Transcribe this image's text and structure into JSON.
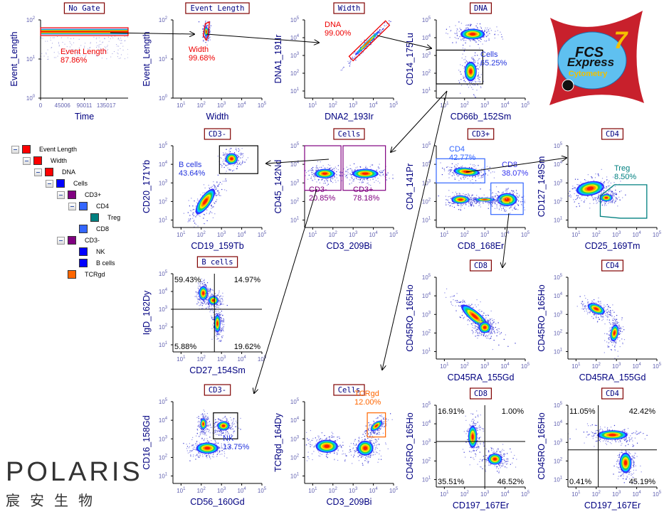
{
  "plots": [
    {
      "id": "p1",
      "title": "No Gate",
      "xlabel": "Time",
      "ylabel": "Event_Length",
      "xscale": "lin",
      "xrange": [
        0,
        180000
      ],
      "xticks": [
        0,
        45006,
        90011,
        135017
      ],
      "yrange": [
        0,
        2
      ],
      "yticks": [
        0,
        1,
        2
      ],
      "pops": [
        {
          "band": true,
          "cy": 1.7,
          "ry": 0.07
        }
      ],
      "gates": [
        {
          "type": "rect",
          "x": [
            0,
            180000
          ],
          "y": [
            1.6,
            1.8
          ],
          "color": "#ee0000",
          "name": "Event Length",
          "pct": "87.86%",
          "tcolor": "#ee0000"
        }
      ]
    },
    {
      "id": "p2",
      "title": "Event Length",
      "xlabel": "Width",
      "ylabel": "Event_Length",
      "xrange": [
        0.6,
        5
      ],
      "xticks": [
        1,
        2,
        3,
        4,
        5
      ],
      "yrange": [
        0,
        2
      ],
      "yticks": [
        0,
        1,
        2
      ],
      "pops": [
        {
          "cx": 2.25,
          "cy": 1.7,
          "rx": 0.1,
          "ry": 0.12,
          "rot": 0
        }
      ],
      "gates": [
        {
          "type": "poly",
          "pts": [
            [
              2.1,
              1.6
            ],
            [
              2.2,
              1.9
            ],
            [
              2.4,
              1.95
            ],
            [
              2.35,
              1.6
            ],
            [
              2.25,
              1.48
            ]
          ],
          "color": "#ee0000",
          "name": "Width",
          "pct": "99.68%",
          "tcolor": "#ee0000"
        }
      ]
    },
    {
      "id": "p3",
      "title": "Width",
      "xlabel": "DNA2_193Ir",
      "ylabel": "DNA1_191Ir",
      "xrange": [
        0.6,
        5
      ],
      "xticks": [
        1,
        2,
        3,
        4,
        5
      ],
      "yrange": [
        0.6,
        5
      ],
      "yticks": [
        1,
        2,
        3,
        4,
        5
      ],
      "pops": [
        {
          "cx": 3.7,
          "cy": 3.7,
          "rx": 0.85,
          "ry": 0.09,
          "rot": 45
        }
      ],
      "gates": [
        {
          "type": "poly",
          "pts": [
            [
              2.8,
              2.95
            ],
            [
              4.6,
              4.95
            ],
            [
              4.8,
              4.7
            ],
            [
              3.0,
              2.7
            ]
          ],
          "color": "#ee0000",
          "name": "DNA",
          "pct": "99.00%",
          "tcolor": "#ee0000"
        }
      ]
    },
    {
      "id": "p4",
      "title": "DNA",
      "xlabel": "CD66b_152Sm",
      "ylabel": "CD14_175Lu",
      "xrange": [
        0.6,
        5
      ],
      "xticks": [
        1,
        2,
        3,
        4,
        5
      ],
      "yrange": [
        0.6,
        5
      ],
      "yticks": [
        1,
        2,
        3,
        4,
        5
      ],
      "pops": [
        {
          "cx": 2.4,
          "cy": 4.2,
          "rx": 0.6,
          "ry": 0.3,
          "rot": 0
        },
        {
          "cx": 2.3,
          "cy": 2.1,
          "rx": 0.3,
          "ry": 0.55,
          "rot": 0
        }
      ],
      "gates": [
        {
          "type": "rect",
          "x": [
            0.6,
            2.9
          ],
          "y": [
            1.4,
            3.3
          ],
          "color": "#000000",
          "name": "Cells",
          "pct": "65.25%",
          "tcolor": "#2233dd"
        }
      ]
    },
    {
      "id": "p5",
      "title": "CD3-",
      "xlabel": "CD19_159Tb",
      "ylabel": "CD20_171Yb",
      "xrange": [
        0.6,
        5
      ],
      "xticks": [
        1,
        2,
        3,
        4,
        5
      ],
      "yrange": [
        0.6,
        5
      ],
      "yticks": [
        1,
        2,
        3,
        4,
        5
      ],
      "pops": [
        {
          "cx": 2.2,
          "cy": 2.0,
          "rx": 0.75,
          "ry": 0.3,
          "rot": 55
        },
        {
          "cx": 3.5,
          "cy": 4.3,
          "rx": 0.3,
          "ry": 0.3,
          "rot": 0
        }
      ],
      "gates": [
        {
          "type": "rect",
          "x": [
            2.9,
            4.8
          ],
          "y": [
            3.5,
            5.0
          ],
          "color": "#000000",
          "name": "B cells",
          "pct": "43.64%",
          "tcolor": "#2233dd"
        }
      ]
    },
    {
      "id": "p6",
      "title": "Cells",
      "xlabel": "CD3_209Bi",
      "ylabel": "CD45_142Nd",
      "xrange": [
        0.6,
        5
      ],
      "xticks": [
        1,
        2,
        3,
        4,
        5
      ],
      "yrange": [
        0.6,
        5
      ],
      "yticks": [
        1,
        2,
        3,
        4,
        5
      ],
      "pops": [
        {
          "cx": 1.6,
          "cy": 3.5,
          "rx": 0.5,
          "ry": 0.25,
          "rot": 0
        },
        {
          "cx": 3.6,
          "cy": 3.5,
          "rx": 0.65,
          "ry": 0.25,
          "rot": 0
        }
      ],
      "gates": [
        {
          "type": "rect",
          "x": [
            0.6,
            2.4
          ],
          "y": [
            2.6,
            5.0
          ],
          "color": "#800080",
          "name": "CD3-",
          "pct": "20.85%",
          "tcolor": "#800080"
        },
        {
          "type": "rect",
          "x": [
            2.5,
            4.6
          ],
          "y": [
            2.6,
            5.0
          ],
          "color": "#800080",
          "name": "CD3+",
          "pct": "78.18%",
          "tcolor": "#800080"
        }
      ]
    },
    {
      "id": "p7",
      "title": "CD3+",
      "xlabel": "CD8_168Er",
      "ylabel": "CD4_141Pr",
      "xrange": [
        0.6,
        5
      ],
      "xticks": [
        1,
        2,
        3,
        4,
        5
      ],
      "yrange": [
        0.6,
        5
      ],
      "yticks": [
        1,
        2,
        3,
        4,
        5
      ],
      "pops": [
        {
          "cx": 2.1,
          "cy": 3.6,
          "rx": 0.65,
          "ry": 0.22,
          "rot": -5
        },
        {
          "cx": 1.8,
          "cy": 2.1,
          "rx": 0.45,
          "ry": 0.22,
          "rot": 0
        },
        {
          "cx": 4.1,
          "cy": 2.1,
          "rx": 0.5,
          "ry": 0.35,
          "rot": 0
        },
        {
          "cx": 3.0,
          "cy": 2.1,
          "rx": 0.5,
          "ry": 0.1,
          "rot": 0
        }
      ],
      "gates": [
        {
          "type": "rect",
          "x": [
            0.6,
            3.0
          ],
          "y": [
            3.0,
            4.3
          ],
          "color": "#3366ff",
          "name": "CD4",
          "pct": "42.77%",
          "tcolor": "#3366ff"
        },
        {
          "type": "rect",
          "x": [
            3.3,
            4.9
          ],
          "y": [
            1.3,
            3.0
          ],
          "color": "#3366ff",
          "name": "CD8",
          "pct": "38.07%",
          "tcolor": "#3333ee"
        }
      ]
    },
    {
      "id": "p8",
      "title": "CD4",
      "xlabel": "CD25_169Tm",
      "ylabel": "CD127_149Sm",
      "xrange": [
        0.6,
        5
      ],
      "xticks": [
        1,
        2,
        3,
        4,
        5
      ],
      "yrange": [
        0.6,
        5
      ],
      "yticks": [
        1,
        2,
        3,
        4,
        5
      ],
      "pops": [
        {
          "cx": 1.7,
          "cy": 2.7,
          "rx": 0.7,
          "ry": 0.38,
          "rot": 10
        },
        {
          "cx": 2.5,
          "cy": 2.2,
          "rx": 0.3,
          "ry": 0.2,
          "rot": 0
        }
      ],
      "gates": [
        {
          "type": "poly",
          "pts": [
            [
              2.2,
              1.2
            ],
            [
              2.2,
              2.3
            ],
            [
              2.9,
              2.9
            ],
            [
              4.5,
              2.9
            ],
            [
              4.5,
              1.1
            ],
            [
              3.2,
              1.1
            ]
          ],
          "color": "#008080",
          "name": "Treg",
          "pct": "8.50%",
          "tcolor": "#008080"
        }
      ]
    },
    {
      "id": "p9",
      "title": "B cells",
      "xlabel": "CD27_154Sm",
      "ylabel": "IgD_162Dy",
      "xrange": [
        0.6,
        5
      ],
      "xticks": [
        1,
        2,
        3,
        4,
        5
      ],
      "yrange": [
        0.6,
        5
      ],
      "yticks": [
        1,
        2,
        3,
        4,
        5
      ],
      "pops": [
        {
          "cx": 2.1,
          "cy": 3.9,
          "rx": 0.22,
          "ry": 0.4,
          "rot": 0
        },
        {
          "cx": 2.8,
          "cy": 2.2,
          "rx": 0.15,
          "ry": 0.5,
          "rot": 0
        },
        {
          "cx": 2.6,
          "cy": 3.5,
          "rx": 0.25,
          "ry": 0.25,
          "rot": 0
        }
      ],
      "gates": [
        {
          "type": "quad",
          "x": 2.65,
          "y": 3.0,
          "color": "#000000",
          "q": [
            "59.43%",
            "14.97%",
            "5.88%",
            "19.62%"
          ]
        }
      ]
    },
    {
      "id": "p10",
      "title": "CD8",
      "xlabel": "CD45RA_155Gd",
      "ylabel": "CD45RO_165Ho",
      "xrange": [
        0.6,
        5
      ],
      "xticks": [
        1,
        2,
        3,
        4,
        5
      ],
      "yrange": [
        0.6,
        5
      ],
      "yticks": [
        1,
        2,
        3,
        4,
        5
      ],
      "pops": [
        {
          "cx": 2.5,
          "cy": 2.9,
          "rx": 0.85,
          "ry": 0.28,
          "rot": -40
        },
        {
          "cx": 3.0,
          "cy": 2.3,
          "rx": 0.3,
          "ry": 0.3,
          "rot": 0
        }
      ],
      "gates": []
    },
    {
      "id": "p11",
      "title": "CD4",
      "xlabel": "CD45RA_155Gd",
      "ylabel": "CD45RO_165Ho",
      "xrange": [
        0.6,
        5
      ],
      "xticks": [
        1,
        2,
        3,
        4,
        5
      ],
      "yrange": [
        0.6,
        5
      ],
      "yticks": [
        1,
        2,
        3,
        4,
        5
      ],
      "pops": [
        {
          "cx": 2.0,
          "cy": 3.3,
          "rx": 0.45,
          "ry": 0.25,
          "rot": -25
        },
        {
          "cx": 2.9,
          "cy": 2.0,
          "rx": 0.2,
          "ry": 0.45,
          "rot": -10
        }
      ],
      "gates": []
    },
    {
      "id": "p12",
      "title": "CD3-",
      "xlabel": "CD56_160Gd",
      "ylabel": "CD16_158Gd",
      "xrange": [
        0.6,
        5
      ],
      "xticks": [
        1,
        2,
        3,
        4,
        5
      ],
      "yrange": [
        0.6,
        5
      ],
      "yticks": [
        1,
        2,
        3,
        4,
        5
      ],
      "pops": [
        {
          "cx": 2.3,
          "cy": 2.5,
          "rx": 0.55,
          "ry": 0.3,
          "rot": 0
        },
        {
          "cx": 3.1,
          "cy": 3.7,
          "rx": 0.3,
          "ry": 0.25,
          "rot": 0
        },
        {
          "cx": 2.1,
          "cy": 3.8,
          "rx": 0.15,
          "ry": 0.3,
          "rot": 0
        }
      ],
      "gates": [
        {
          "type": "rect",
          "x": [
            2.6,
            3.8
          ],
          "y": [
            3.0,
            4.4
          ],
          "color": "#000000",
          "name": "NK",
          "pct": "13.75%",
          "tcolor": "#2233dd"
        }
      ]
    },
    {
      "id": "p13",
      "title": "Cells",
      "xlabel": "CD3_209Bi",
      "ylabel": "TCRgd_164Dy",
      "xrange": [
        0.6,
        5
      ],
      "xticks": [
        1,
        2,
        3,
        4,
        5
      ],
      "yrange": [
        0.6,
        5
      ],
      "yticks": [
        1,
        2,
        3,
        4,
        5
      ],
      "pops": [
        {
          "cx": 1.7,
          "cy": 2.6,
          "rx": 0.55,
          "ry": 0.35,
          "rot": 0
        },
        {
          "cx": 3.6,
          "cy": 2.5,
          "rx": 0.4,
          "ry": 0.4,
          "rot": 0
        },
        {
          "cx": 4.15,
          "cy": 3.7,
          "rx": 0.35,
          "ry": 0.18,
          "rot": 40
        }
      ],
      "gates": [
        {
          "type": "rect",
          "x": [
            3.7,
            4.6
          ],
          "y": [
            3.1,
            4.4
          ],
          "color": "#ff6600",
          "name": "TCRgd",
          "pct": "12.00%",
          "tcolor": "#ff6600"
        }
      ]
    },
    {
      "id": "p14",
      "title": "CD8",
      "xlabel": "CD197_167Er",
      "ylabel": "CD45RO_165Ho",
      "xrange": [
        0.6,
        5
      ],
      "xticks": [
        1,
        2,
        3,
        4,
        5
      ],
      "yrange": [
        0.6,
        5
      ],
      "yticks": [
        1,
        2,
        3,
        4,
        5
      ],
      "pops": [
        {
          "cx": 2.4,
          "cy": 3.3,
          "rx": 0.22,
          "ry": 0.6,
          "rot": 0
        },
        {
          "cx": 3.5,
          "cy": 2.1,
          "rx": 0.35,
          "ry": 0.3,
          "rot": 0
        }
      ],
      "gates": [
        {
          "type": "quad",
          "x": 3.0,
          "y": 3.05,
          "color": "#000000",
          "q": [
            "16.91%",
            "1.00%",
            "35.51%",
            "46.52%"
          ]
        }
      ]
    },
    {
      "id": "p15",
      "title": "CD4",
      "xlabel": "CD197_167Er",
      "ylabel": "CD45RO_165Ho",
      "xrange": [
        0.6,
        5
      ],
      "xticks": [
        1,
        2,
        3,
        4,
        5
      ],
      "yrange": [
        0.6,
        5
      ],
      "yticks": [
        1,
        2,
        3,
        4,
        5
      ],
      "pops": [
        {
          "cx": 2.8,
          "cy": 3.4,
          "rx": 0.75,
          "ry": 0.25,
          "rot": 0
        },
        {
          "cx": 3.45,
          "cy": 1.9,
          "rx": 0.3,
          "ry": 0.55,
          "rot": 0
        }
      ],
      "gates": [
        {
          "type": "quad",
          "x": 2.1,
          "y": 2.6,
          "color": "#000000",
          "q": [
            "11.05%",
            "42.42%",
            "0.41%",
            "45.19%"
          ]
        }
      ]
    }
  ],
  "tree": [
    {
      "label": "Event Length",
      "color": "#ff0000",
      "level": 0,
      "expand": true
    },
    {
      "label": "Width",
      "color": "#ff0000",
      "level": 1,
      "expand": true
    },
    {
      "label": "DNA",
      "color": "#ff0000",
      "level": 2,
      "expand": true
    },
    {
      "label": "Cells",
      "color": "#0000ff",
      "level": 3,
      "expand": true
    },
    {
      "label": "CD3+",
      "color": "#800080",
      "level": 4,
      "expand": true
    },
    {
      "label": "CD4",
      "color": "#3366ff",
      "level": 5,
      "expand": true
    },
    {
      "label": "Treg",
      "color": "#008080",
      "level": 6,
      "expand": false
    },
    {
      "label": "CD8",
      "color": "#3366ff",
      "level": 5,
      "expand": false
    },
    {
      "label": "CD3-",
      "color": "#800080",
      "level": 4,
      "expand": true
    },
    {
      "label": "NK",
      "color": "#0000ff",
      "level": 5,
      "expand": false
    },
    {
      "label": "B cells",
      "color": "#0000ff",
      "level": 5,
      "expand": false
    },
    {
      "label": "TCRgd",
      "color": "#ff6600",
      "level": 4,
      "expand": false
    }
  ],
  "logo_fcs": {
    "line1": "FCS",
    "line2": "Express",
    "version": "7",
    "sub": "Cytometry"
  },
  "logo_polaris": {
    "name": "POLARIS",
    "cn": "宸安生物"
  },
  "colors": {
    "axis": "#000080",
    "title_border": "#800000",
    "density": [
      "#3030ff",
      "#00c0ff",
      "#20d060",
      "#f0f000",
      "#ff9000",
      "#ff2000"
    ]
  }
}
